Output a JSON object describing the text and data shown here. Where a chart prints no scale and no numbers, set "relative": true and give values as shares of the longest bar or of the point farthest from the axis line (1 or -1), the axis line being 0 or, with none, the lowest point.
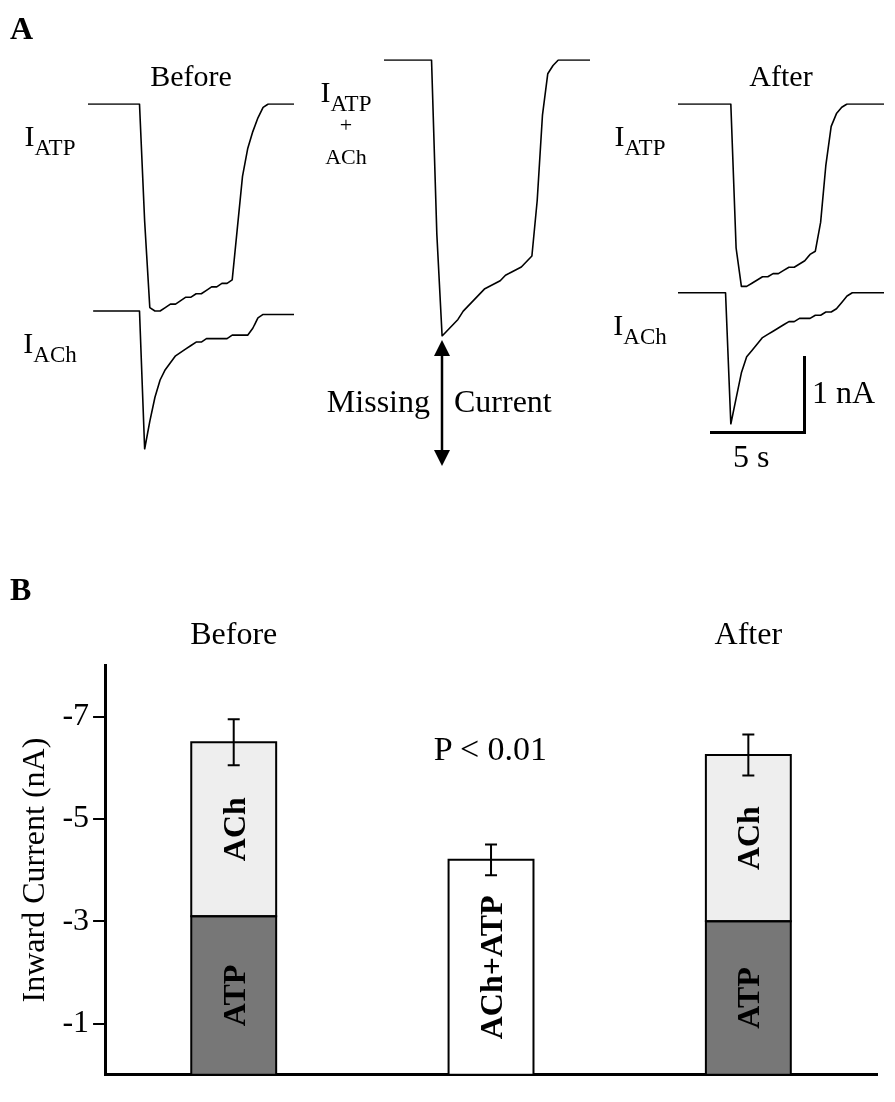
{
  "chart_data": [
    {
      "type": "line",
      "title": "Before",
      "relative": true,
      "annotations": [
        "A"
      ],
      "categories": [
        null,
        null,
        null,
        null,
        null,
        null,
        null,
        null,
        null,
        null,
        null,
        null,
        null,
        null,
        null,
        null,
        null,
        null,
        null,
        null,
        null,
        null,
        null,
        null,
        null,
        null,
        null,
        null,
        null,
        null,
        null,
        null,
        null,
        null,
        null,
        null,
        null,
        null,
        null,
        null,
        null
      ],
      "series": [
        {
          "name": "I$_{ATP}$",
          "color": "#000000",
          "values": [
            1,
            1,
            1,
            1,
            1,
            1,
            1,
            1,
            1,
            1,
            1,
            0.66,
            0.41,
            0.4,
            0.4,
            0.41,
            0.42,
            0.42,
            0.43,
            0.44,
            0.44,
            0.45,
            0.45,
            0.46,
            0.47,
            0.47,
            0.48,
            0.48,
            0.49,
            0.64,
            0.79,
            0.87,
            0.92,
            0.96,
            0.99,
            1,
            1,
            1,
            1,
            1,
            1
          ]
        },
        {
          "name": "I$_{ACh}$",
          "color": "#000000",
          "values": [
            null,
            0.4,
            0.4,
            0.4,
            0.4,
            0.4,
            0.4,
            0.4,
            0.4,
            0.4,
            0.4,
            0,
            0.08,
            0.15,
            0.2,
            0.23,
            0.25,
            0.27,
            0.28,
            0.29,
            0.3,
            0.31,
            0.31,
            0.32,
            0.32,
            0.32,
            0.32,
            0.32,
            0.33,
            0.33,
            0.33,
            0.33,
            0.35,
            0.38,
            0.39,
            0.39,
            0.39,
            0.39,
            0.39,
            0.39,
            0.39
          ]
        }
      ]
    },
    {
      "type": "line",
      "relative": true,
      "annotations": [
        "Missing Current"
      ],
      "categories": [
        null,
        null,
        null,
        null,
        null,
        null,
        null,
        null,
        null,
        null,
        null,
        null,
        null,
        null,
        null,
        null,
        null,
        null,
        null,
        null,
        null,
        null,
        null,
        null,
        null,
        null,
        null,
        null,
        null,
        null,
        null,
        null,
        null,
        null,
        null,
        null,
        null,
        null,
        null,
        null
      ],
      "series": [
        {
          "name": "I$_{ATP}$\n+\nACh",
          "color": "#000000",
          "values": [
            1,
            1,
            1,
            1,
            1,
            1,
            1,
            1,
            1,
            1,
            0.37,
            0,
            0.02,
            0.04,
            0.06,
            0.09,
            0.11,
            0.13,
            0.15,
            0.17,
            0.18,
            0.19,
            0.2,
            0.22,
            0.23,
            0.24,
            0.25,
            0.27,
            0.29,
            0.49,
            0.8,
            0.95,
            0.98,
            1,
            1,
            1,
            1,
            1,
            1,
            1
          ]
        }
      ]
    },
    {
      "type": "line",
      "title": "After",
      "relative": true,
      "annotations": [
        "1 nA",
        "5 s"
      ],
      "categories": [
        null,
        null,
        null,
        null,
        null,
        null,
        null,
        null,
        null,
        null,
        null,
        null,
        null,
        null,
        null,
        null,
        null,
        null,
        null,
        null,
        null,
        null,
        null,
        null,
        null,
        null,
        null,
        null,
        null,
        null,
        null,
        null,
        null,
        null,
        null,
        null,
        null,
        null,
        null,
        null
      ],
      "series": [
        {
          "name": "I$_{ATP}$",
          "color": "#000000",
          "values": [
            1,
            1,
            1,
            1,
            1,
            1,
            1,
            1,
            1,
            1,
            1,
            0.55,
            0.43,
            0.43,
            0.44,
            0.45,
            0.46,
            0.46,
            0.47,
            0.47,
            0.48,
            0.49,
            0.49,
            0.5,
            0.51,
            0.53,
            0.54,
            0.63,
            0.81,
            0.93,
            0.97,
            0.99,
            1,
            1,
            1,
            1,
            1,
            1,
            1,
            1
          ]
        },
        {
          "name": "I$_{ACh}$",
          "color": "#000000",
          "values": [
            0.41,
            0.41,
            0.41,
            0.41,
            0.41,
            0.41,
            0.41,
            0.41,
            0.41,
            0.41,
            0,
            0.08,
            0.16,
            0.21,
            0.23,
            0.25,
            0.27,
            0.28,
            0.29,
            0.3,
            0.31,
            0.32,
            0.32,
            0.33,
            0.33,
            0.33,
            0.34,
            0.34,
            0.35,
            0.35,
            0.36,
            0.38,
            0.4,
            0.41,
            0.41,
            0.41,
            0.41,
            0.41,
            0.41,
            0.41
          ]
        }
      ]
    },
    {
      "type": "bar",
      "categories": [
        "Before",
        null,
        "After"
      ],
      "ylabel": "Inward Current (nA)",
      "stacked": true,
      "ylim": [
        0,
        -8
      ],
      "yticks": [
        -1,
        -3,
        -5,
        -7
      ],
      "annotations": [
        "B",
        "P < 0.01"
      ],
      "series": [
        {
          "name": "ATP",
          "color": "#777777",
          "values": [
            -3.1,
            null,
            -3.0
          ]
        },
        {
          "name": "ACh",
          "color": "#eeeeee",
          "values": [
            -3.4,
            null,
            -3.25
          ],
          "errors": [
            0.45,
            null,
            0.4
          ]
        },
        {
          "name": "ACh+ATP",
          "color": "#ffffff",
          "values": [
            null,
            -4.2,
            null
          ],
          "errors": [
            null,
            0.3,
            null
          ]
        }
      ]
    }
  ]
}
